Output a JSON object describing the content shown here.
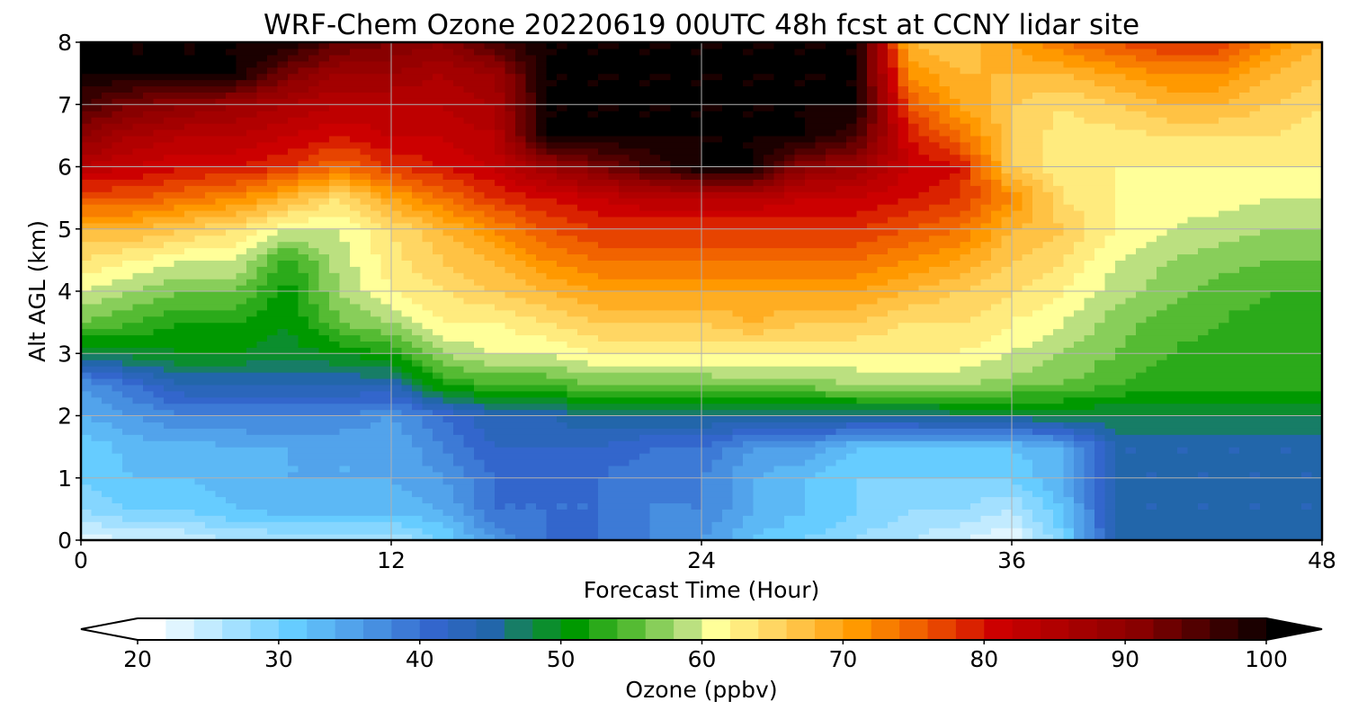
{
  "chart_data": {
    "type": "heatmap",
    "title": "WRF-Chem Ozone  20220619 00UTC 48h fcst at CCNY lidar site",
    "xlabel": "Forecast Time (Hour)",
    "ylabel": "Alt AGL (km)",
    "xlim": [
      0,
      48
    ],
    "ylim": [
      0,
      8
    ],
    "xticks": [
      "0",
      "12",
      "24",
      "36",
      "48"
    ],
    "yticks": [
      "0",
      "1",
      "2",
      "3",
      "4",
      "5",
      "6",
      "7",
      "8"
    ],
    "grid": true,
    "colorbar": {
      "label": "Ozone  (ppbv)",
      "min": 20,
      "max": 100,
      "step": 2,
      "ticks": [
        "20",
        "30",
        "40",
        "50",
        "60",
        "70",
        "80",
        "90",
        "100"
      ],
      "extend": "both",
      "placement": "bottom",
      "colors": [
        {
          "value": 20,
          "color": "#ffffff"
        },
        {
          "value": 30,
          "color": "#66ccff"
        },
        {
          "value": 40,
          "color": "#3366cc"
        },
        {
          "value": 44,
          "color": "#2266aa"
        },
        {
          "value": 47,
          "color": "#118844"
        },
        {
          "value": 50,
          "color": "#009900"
        },
        {
          "value": 54,
          "color": "#55bb33"
        },
        {
          "value": 58,
          "color": "#bbe080"
        },
        {
          "value": 60,
          "color": "#ffff99"
        },
        {
          "value": 65,
          "color": "#ffcc55"
        },
        {
          "value": 70,
          "color": "#ff9900"
        },
        {
          "value": 75,
          "color": "#ee5500"
        },
        {
          "value": 80,
          "color": "#cc0000"
        },
        {
          "value": 90,
          "color": "#880000"
        },
        {
          "value": 100,
          "color": "#000000"
        }
      ]
    },
    "times": [
      0,
      2,
      4,
      6,
      8,
      10,
      12,
      14,
      16,
      18,
      20,
      22,
      24,
      26,
      28,
      30,
      32,
      34,
      36,
      38,
      40,
      42,
      44,
      46,
      48
    ],
    "altitudes": [
      0,
      0.5,
      1,
      1.5,
      2,
      2.5,
      3,
      3.5,
      4,
      4.5,
      5,
      5.5,
      6,
      6.5,
      7,
      7.5,
      8
    ],
    "values": [
      [
        22,
        28,
        30,
        30,
        34,
        36,
        48,
        56,
        60,
        64,
        68,
        76,
        84,
        90,
        96,
        100,
        100
      ],
      [
        24,
        30,
        32,
        33,
        36,
        40,
        49,
        54,
        58,
        62,
        68,
        76,
        82,
        86,
        92,
        100,
        100
      ],
      [
        24,
        30,
        32,
        33,
        38,
        44,
        50,
        52,
        56,
        60,
        66,
        74,
        80,
        84,
        90,
        100,
        100
      ],
      [
        26,
        32,
        33,
        34,
        38,
        44,
        50,
        52,
        56,
        60,
        64,
        72,
        80,
        84,
        88,
        100,
        100
      ],
      [
        26,
        33,
        34,
        34,
        38,
        44,
        49,
        50,
        51,
        53,
        60,
        68,
        78,
        82,
        86,
        92,
        100
      ],
      [
        26,
        33,
        34,
        34,
        38,
        44,
        50,
        56,
        58,
        59,
        60,
        64,
        74,
        80,
        84,
        88,
        94
      ],
      [
        26,
        33,
        34,
        34,
        36,
        44,
        52,
        58,
        62,
        63,
        64,
        70,
        78,
        82,
        84,
        88,
        92
      ],
      [
        30,
        34,
        36,
        38,
        40,
        52,
        58,
        62,
        64,
        66,
        68,
        74,
        80,
        82,
        84,
        86,
        90
      ],
      [
        36,
        40,
        40,
        42,
        44,
        54,
        60,
        62,
        66,
        68,
        72,
        78,
        82,
        84,
        86,
        88,
        96
      ],
      [
        40,
        40,
        40,
        42,
        44,
        54,
        60,
        64,
        68,
        72,
        76,
        80,
        88,
        100,
        100,
        100,
        100
      ],
      [
        40,
        40,
        40,
        42,
        46,
        56,
        62,
        66,
        70,
        74,
        78,
        82,
        92,
        100,
        100,
        100,
        100
      ],
      [
        38,
        38,
        38,
        40,
        46,
        56,
        62,
        66,
        70,
        74,
        78,
        84,
        96,
        100,
        100,
        100,
        100
      ],
      [
        36,
        38,
        38,
        40,
        46,
        56,
        62,
        66,
        70,
        74,
        78,
        84,
        100,
        100,
        100,
        100,
        100
      ],
      [
        32,
        34,
        34,
        36,
        46,
        57,
        62,
        68,
        70,
        74,
        78,
        84,
        100,
        100,
        100,
        100,
        100
      ],
      [
        30,
        32,
        32,
        36,
        46,
        57,
        62,
        66,
        70,
        74,
        78,
        82,
        90,
        100,
        100,
        100,
        100
      ],
      [
        28,
        30,
        30,
        32,
        46,
        58,
        62,
        66,
        70,
        74,
        78,
        82,
        88,
        96,
        100,
        100,
        100
      ],
      [
        26,
        28,
        30,
        32,
        46,
        58,
        62,
        64,
        68,
        72,
        76,
        80,
        82,
        80,
        76,
        72,
        68
      ],
      [
        24,
        28,
        30,
        32,
        47,
        58,
        62,
        64,
        66,
        70,
        74,
        78,
        80,
        74,
        70,
        68,
        66
      ],
      [
        22,
        26,
        30,
        32,
        47,
        57,
        60,
        62,
        64,
        66,
        68,
        72,
        66,
        66,
        66,
        68,
        70
      ],
      [
        30,
        32,
        34,
        34,
        48,
        56,
        58,
        60,
        62,
        64,
        66,
        64,
        62,
        63,
        64,
        68,
        74
      ],
      [
        44,
        44,
        44,
        44,
        48,
        54,
        56,
        57,
        59,
        60,
        62,
        62,
        62,
        63,
        66,
        70,
        76
      ],
      [
        44,
        44,
        44,
        44,
        48,
        53,
        54,
        55,
        57,
        58,
        60,
        61,
        62,
        64,
        68,
        72,
        78
      ],
      [
        44,
        44,
        44,
        44,
        48,
        53,
        53,
        54,
        55,
        57,
        59,
        61,
        62,
        64,
        68,
        72,
        78
      ],
      [
        44,
        44,
        44,
        44,
        48,
        53,
        53,
        53,
        54,
        56,
        58,
        60,
        62,
        64,
        66,
        68,
        72
      ],
      [
        44,
        44,
        44,
        44,
        48,
        53,
        53,
        53,
        54,
        56,
        58,
        60,
        62,
        63,
        64,
        66,
        68
      ]
    ]
  }
}
